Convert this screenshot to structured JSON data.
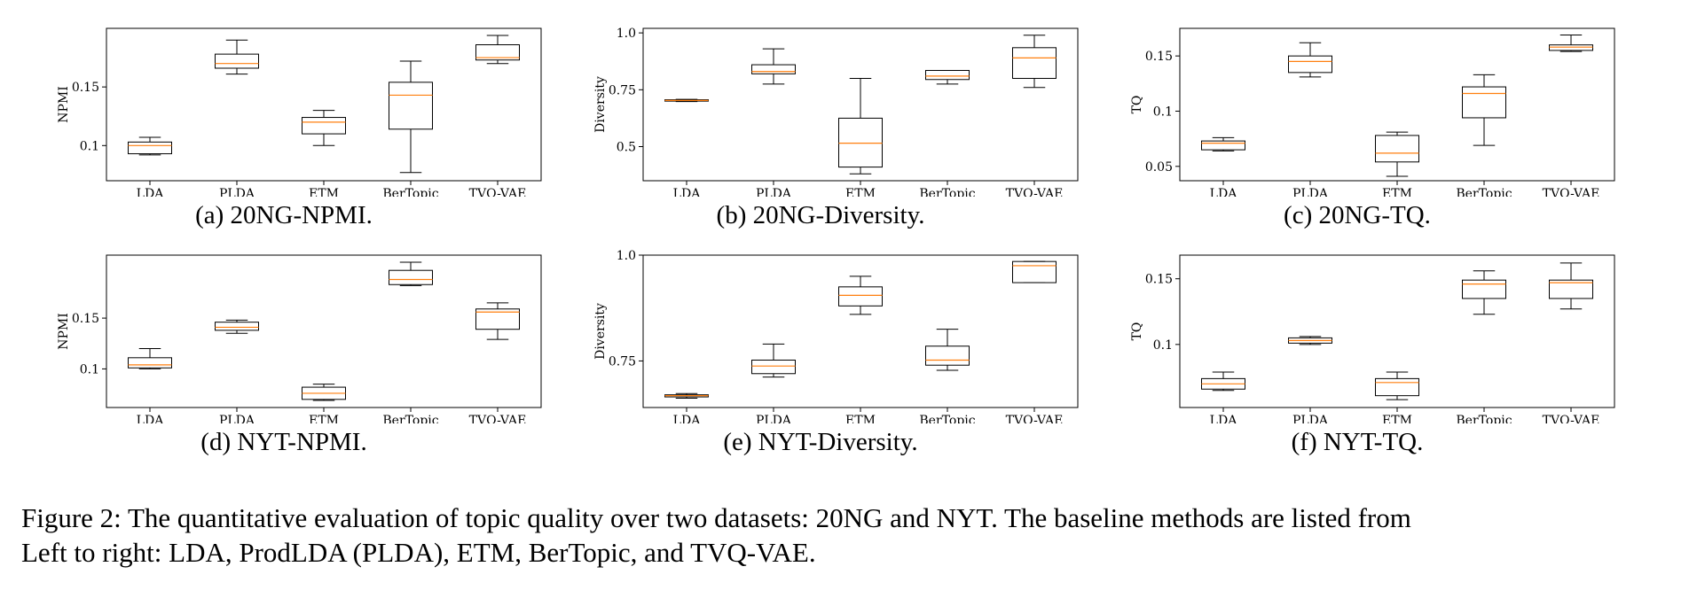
{
  "chart_data": [
    {
      "type": "box",
      "ylabel": "NPMI",
      "caption": "(a) 20NG-NPMI.",
      "categories": [
        "LDA",
        "PLDA",
        "ETM",
        "BerTopic",
        "TVQ-VAE"
      ],
      "ylim": [
        0.07,
        0.2
      ],
      "yticks": [
        0.1,
        0.15
      ],
      "ytick_labels": [
        "0.1",
        "0.15"
      ],
      "boxes": [
        {
          "whislo": 0.092,
          "q1": 0.093,
          "med": 0.1,
          "q3": 0.103,
          "whishi": 0.107
        },
        {
          "whislo": 0.161,
          "q1": 0.166,
          "med": 0.17,
          "q3": 0.178,
          "whishi": 0.19
        },
        {
          "whislo": 0.1,
          "q1": 0.11,
          "med": 0.12,
          "q3": 0.124,
          "whishi": 0.13
        },
        {
          "whislo": 0.077,
          "q1": 0.114,
          "med": 0.143,
          "q3": 0.154,
          "whishi": 0.172
        },
        {
          "whislo": 0.17,
          "q1": 0.173,
          "med": 0.175,
          "q3": 0.186,
          "whishi": 0.194
        }
      ]
    },
    {
      "type": "box",
      "ylabel": "Diversity",
      "caption": "(b) 20NG-Diversity.",
      "categories": [
        "LDA",
        "PLDA",
        "ETM",
        "BerTopic",
        "TVQ-VAE"
      ],
      "ylim": [
        0.35,
        1.02
      ],
      "yticks": [
        0.5,
        0.75,
        1.0
      ],
      "ytick_labels": [
        "0.5",
        "0.75",
        "1.0"
      ],
      "boxes": [
        {
          "whislo": 0.698,
          "q1": 0.7,
          "med": 0.703,
          "q3": 0.706,
          "whishi": 0.708
        },
        {
          "whislo": 0.775,
          "q1": 0.82,
          "med": 0.83,
          "q3": 0.86,
          "whishi": 0.93
        },
        {
          "whislo": 0.38,
          "q1": 0.41,
          "med": 0.515,
          "q3": 0.625,
          "whishi": 0.8
        },
        {
          "whislo": 0.775,
          "q1": 0.795,
          "med": 0.81,
          "q3": 0.835,
          "whishi": 0.835
        },
        {
          "whislo": 0.76,
          "q1": 0.8,
          "med": 0.89,
          "q3": 0.935,
          "whishi": 0.99
        }
      ]
    },
    {
      "type": "box",
      "ylabel": "TQ",
      "caption": "(c) 20NG-TQ.",
      "categories": [
        "LDA",
        "PLDA",
        "ETM",
        "BerTopic",
        "TVQ-VAE"
      ],
      "ylim": [
        0.037,
        0.175
      ],
      "yticks": [
        0.05,
        0.1,
        0.15
      ],
      "ytick_labels": [
        "0.05",
        "0.1",
        "0.15"
      ],
      "boxes": [
        {
          "whislo": 0.064,
          "q1": 0.065,
          "med": 0.071,
          "q3": 0.073,
          "whishi": 0.076
        },
        {
          "whislo": 0.131,
          "q1": 0.135,
          "med": 0.145,
          "q3": 0.15,
          "whishi": 0.162
        },
        {
          "whislo": 0.041,
          "q1": 0.054,
          "med": 0.062,
          "q3": 0.078,
          "whishi": 0.081
        },
        {
          "whislo": 0.069,
          "q1": 0.094,
          "med": 0.116,
          "q3": 0.122,
          "whishi": 0.133
        },
        {
          "whislo": 0.154,
          "q1": 0.155,
          "med": 0.158,
          "q3": 0.16,
          "whishi": 0.169
        }
      ]
    },
    {
      "type": "box",
      "ylabel": "NPMI",
      "caption": "(d) NYT-NPMI.",
      "categories": [
        "LDA",
        "PLDA",
        "ETM",
        "BerTopic",
        "TVQ-VAE"
      ],
      "ylim": [
        0.062,
        0.212
      ],
      "yticks": [
        0.1,
        0.15
      ],
      "ytick_labels": [
        "0.1",
        "0.15"
      ],
      "boxes": [
        {
          "whislo": 0.1,
          "q1": 0.101,
          "med": 0.104,
          "q3": 0.111,
          "whishi": 0.12
        },
        {
          "whislo": 0.135,
          "q1": 0.138,
          "med": 0.141,
          "q3": 0.146,
          "whishi": 0.148
        },
        {
          "whislo": 0.069,
          "q1": 0.07,
          "med": 0.076,
          "q3": 0.082,
          "whishi": 0.085
        },
        {
          "whislo": 0.182,
          "q1": 0.183,
          "med": 0.188,
          "q3": 0.197,
          "whishi": 0.205
        },
        {
          "whislo": 0.129,
          "q1": 0.139,
          "med": 0.156,
          "q3": 0.159,
          "whishi": 0.165
        }
      ]
    },
    {
      "type": "box",
      "ylabel": "Diversity",
      "caption": "(e) NYT-Diversity.",
      "categories": [
        "LDA",
        "PLDA",
        "ETM",
        "BerTopic",
        "TVQ-VAE"
      ],
      "ylim": [
        0.64,
        1.0
      ],
      "yticks": [
        0.75,
        1.0
      ],
      "ytick_labels": [
        "0.75",
        "1.0"
      ],
      "boxes": [
        {
          "whislo": 0.662,
          "q1": 0.665,
          "med": 0.668,
          "q3": 0.67,
          "whishi": 0.673
        },
        {
          "whislo": 0.712,
          "q1": 0.72,
          "med": 0.738,
          "q3": 0.752,
          "whishi": 0.79
        },
        {
          "whislo": 0.86,
          "q1": 0.88,
          "med": 0.905,
          "q3": 0.925,
          "whishi": 0.95
        },
        {
          "whislo": 0.728,
          "q1": 0.74,
          "med": 0.752,
          "q3": 0.785,
          "whishi": 0.825
        },
        {
          "whislo": 0.935,
          "q1": 0.935,
          "med": 0.975,
          "q3": 0.985,
          "whishi": 0.985
        }
      ]
    },
    {
      "type": "box",
      "ylabel": "TQ",
      "caption": "(f) NYT-TQ.",
      "categories": [
        "LDA",
        "PLDA",
        "ETM",
        "BerTopic",
        "TVQ-VAE"
      ],
      "ylim": [
        0.052,
        0.168
      ],
      "yticks": [
        0.1,
        0.15
      ],
      "ytick_labels": [
        "0.1",
        "0.15"
      ],
      "boxes": [
        {
          "whislo": 0.065,
          "q1": 0.066,
          "med": 0.07,
          "q3": 0.074,
          "whishi": 0.079
        },
        {
          "whislo": 0.1,
          "q1": 0.101,
          "med": 0.103,
          "q3": 0.105,
          "whishi": 0.106
        },
        {
          "whislo": 0.058,
          "q1": 0.061,
          "med": 0.071,
          "q3": 0.074,
          "whishi": 0.079
        },
        {
          "whislo": 0.123,
          "q1": 0.135,
          "med": 0.146,
          "q3": 0.149,
          "whishi": 0.156
        },
        {
          "whislo": 0.127,
          "q1": 0.135,
          "med": 0.147,
          "q3": 0.149,
          "whishi": 0.162
        }
      ]
    }
  ],
  "colors": {
    "median": "#ff7f0e",
    "box": "#000000"
  },
  "figure_caption": {
    "line1": "Figure 2: The quantitative evaluation of topic quality over two datasets: 20NG and NYT. The baseline methods are listed from",
    "line2": "Left to right: LDA, ProdLDA (PLDA), ETM, BerTopic, and TVQ-VAE."
  }
}
